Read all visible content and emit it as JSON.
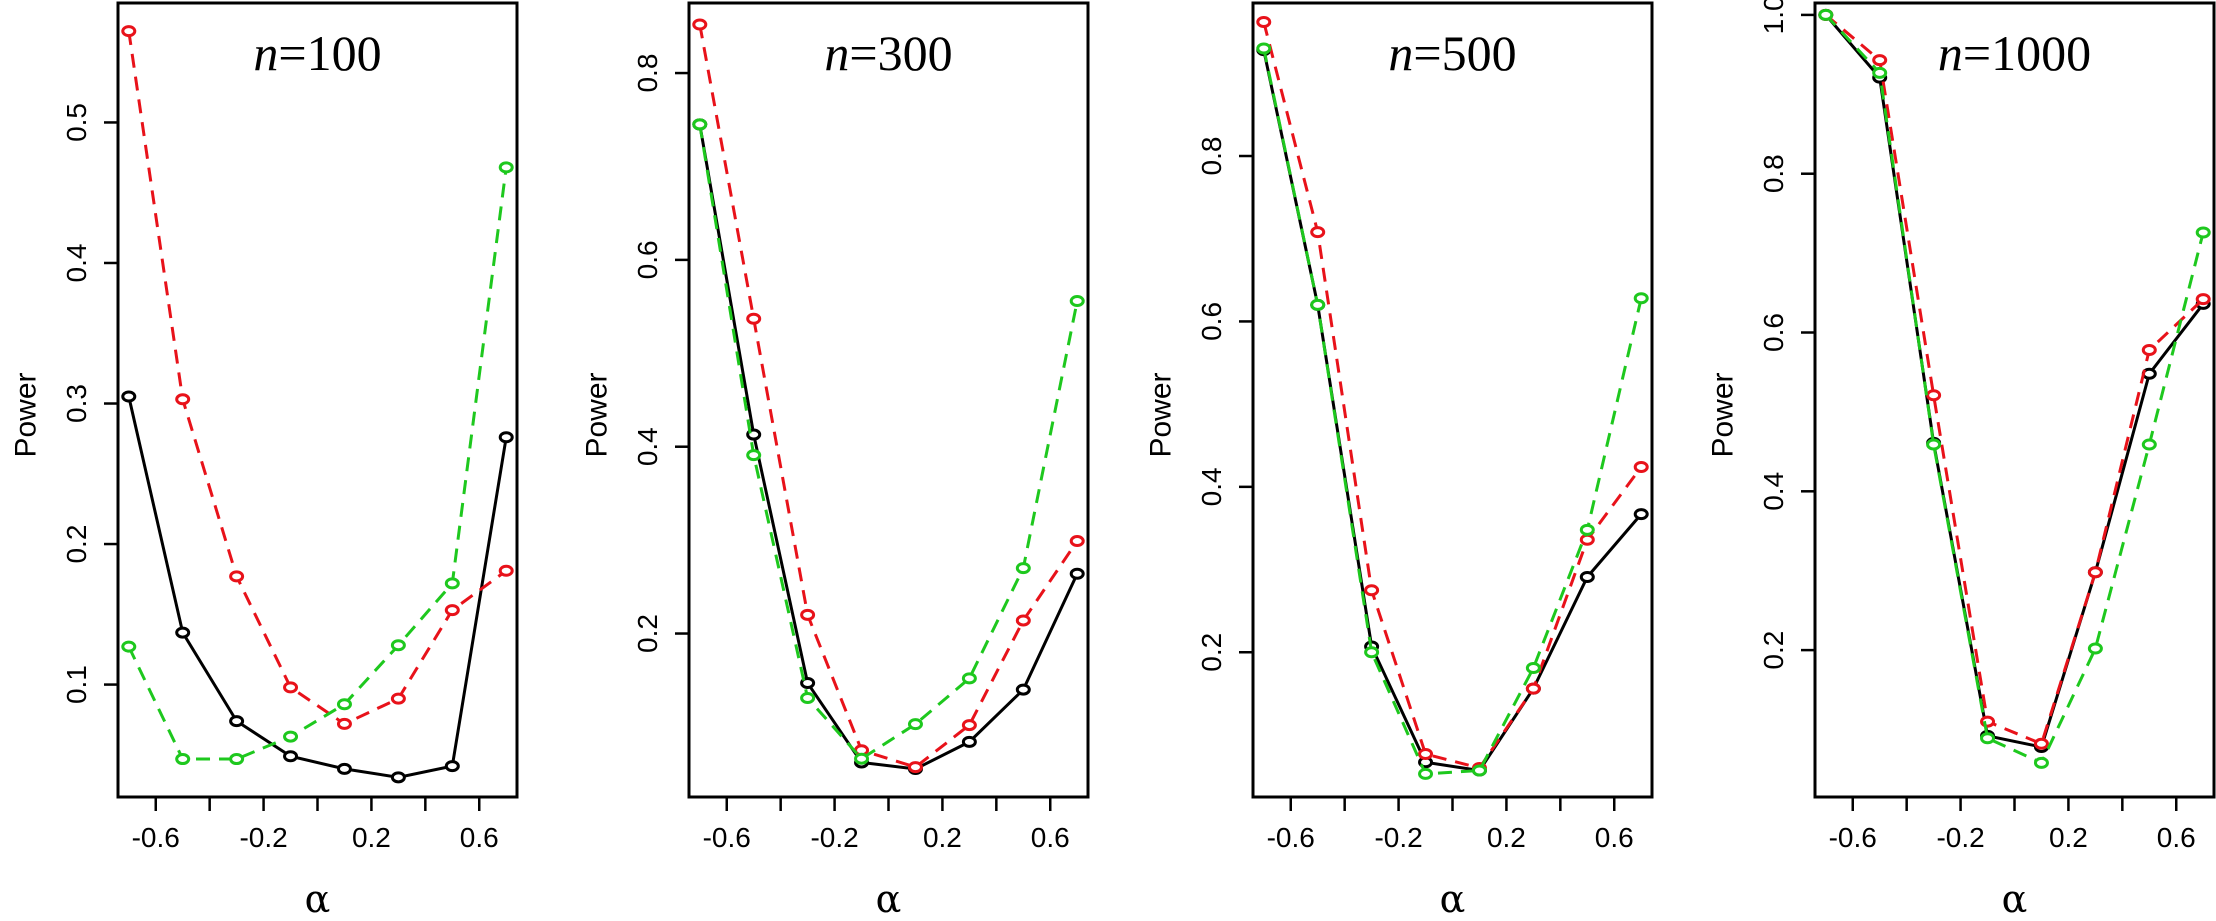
{
  "chart_data": [
    {
      "type": "line",
      "title": "n=100",
      "title_var": "n",
      "title_rest": "=100",
      "xlabel": "α",
      "ylabel": "Power",
      "xlim": [
        -0.74,
        0.74
      ],
      "ylim": [
        0.02,
        0.585
      ],
      "xticks": [
        -0.6,
        -0.4,
        -0.2,
        0.0,
        0.2,
        0.4,
        0.6
      ],
      "xtick_labels": [
        "-0.6",
        "",
        "-0.2",
        "",
        "0.2",
        "",
        "0.6"
      ],
      "yticks": [
        0.1,
        0.2,
        0.3,
        0.4,
        0.5
      ],
      "ytick_labels": [
        "0.1",
        "0.2",
        "0.3",
        "0.4",
        "0.5"
      ],
      "x": [
        -0.7,
        -0.5,
        -0.3,
        -0.1,
        0.1,
        0.3,
        0.5,
        0.7
      ],
      "series": [
        {
          "color": "#000000",
          "dash": "solid",
          "values": [
            0.305,
            0.137,
            0.074,
            0.049,
            0.04,
            0.034,
            0.042,
            0.276
          ]
        },
        {
          "color": "#e8121a",
          "dash": "dashed",
          "values": [
            0.565,
            0.303,
            0.177,
            0.098,
            0.072,
            0.09,
            0.153,
            0.181
          ]
        },
        {
          "color": "#1ec81e",
          "dash": "dashed",
          "values": [
            0.127,
            0.047,
            0.047,
            0.063,
            0.086,
            0.128,
            0.172,
            0.468
          ]
        }
      ]
    },
    {
      "type": "line",
      "title": "n=300",
      "title_var": "n",
      "title_rest": "=300",
      "xlabel": "α",
      "ylabel": "Power",
      "xlim": [
        -0.74,
        0.74
      ],
      "ylim": [
        0.025,
        0.875
      ],
      "xticks": [
        -0.6,
        -0.4,
        -0.2,
        0.0,
        0.2,
        0.4,
        0.6
      ],
      "xtick_labels": [
        "-0.6",
        "",
        "-0.2",
        "",
        "0.2",
        "",
        "0.6"
      ],
      "yticks": [
        0.2,
        0.4,
        0.6,
        0.8
      ],
      "ytick_labels": [
        "0.2",
        "0.4",
        "0.6",
        "0.8"
      ],
      "x": [
        -0.7,
        -0.5,
        -0.3,
        -0.1,
        0.1,
        0.3,
        0.5,
        0.7
      ],
      "series": [
        {
          "color": "#000000",
          "dash": "solid",
          "values": [
            0.745,
            0.413,
            0.147,
            0.062,
            0.055,
            0.084,
            0.14,
            0.264
          ]
        },
        {
          "color": "#e8121a",
          "dash": "dashed",
          "values": [
            0.852,
            0.537,
            0.22,
            0.075,
            0.057,
            0.102,
            0.214,
            0.299
          ]
        },
        {
          "color": "#1ec81e",
          "dash": "dashed",
          "values": [
            0.745,
            0.391,
            0.131,
            0.066,
            0.103,
            0.152,
            0.27,
            0.556
          ]
        }
      ]
    },
    {
      "type": "line",
      "title": "n=500",
      "title_var": "n",
      "title_rest": "=500",
      "xlabel": "α",
      "ylabel": "Power",
      "xlim": [
        -0.74,
        0.74
      ],
      "ylim": [
        0.025,
        0.985
      ],
      "xticks": [
        -0.6,
        -0.4,
        -0.2,
        0.0,
        0.2,
        0.4,
        0.6
      ],
      "xtick_labels": [
        "-0.6",
        "",
        "-0.2",
        "",
        "0.2",
        "",
        "0.6"
      ],
      "yticks": [
        0.2,
        0.4,
        0.6,
        0.8
      ],
      "ytick_labels": [
        "0.2",
        "0.4",
        "0.6",
        "0.8"
      ],
      "x": [
        -0.7,
        -0.5,
        -0.3,
        -0.1,
        0.1,
        0.3,
        0.5,
        0.7
      ],
      "series": [
        {
          "color": "#000000",
          "dash": "solid",
          "values": [
            0.928,
            0.62,
            0.207,
            0.067,
            0.057,
            0.156,
            0.291,
            0.367
          ]
        },
        {
          "color": "#e8121a",
          "dash": "dashed",
          "values": [
            0.962,
            0.708,
            0.275,
            0.077,
            0.06,
            0.156,
            0.336,
            0.424
          ]
        },
        {
          "color": "#1ec81e",
          "dash": "dashed",
          "values": [
            0.93,
            0.62,
            0.2,
            0.053,
            0.057,
            0.181,
            0.348,
            0.628
          ]
        }
      ]
    },
    {
      "type": "line",
      "title": "n=1000",
      "title_var": "n",
      "title_rest": "=1000",
      "xlabel": "α",
      "ylabel": "Power",
      "xlim": [
        -0.74,
        0.74
      ],
      "ylim": [
        0.015,
        1.015
      ],
      "xticks": [
        -0.6,
        -0.4,
        -0.2,
        0.0,
        0.2,
        0.4,
        0.6
      ],
      "xtick_labels": [
        "-0.6",
        "",
        "-0.2",
        "",
        "0.2",
        "",
        "0.6"
      ],
      "yticks": [
        0.2,
        0.4,
        0.6,
        0.8,
        1.0
      ],
      "ytick_labels": [
        "0.2",
        "0.4",
        "0.6",
        "0.8",
        "1.0"
      ],
      "x": [
        -0.7,
        -0.5,
        -0.3,
        -0.1,
        0.1,
        0.3,
        0.5,
        0.7
      ],
      "series": [
        {
          "color": "#000000",
          "dash": "solid",
          "values": [
            1.0,
            0.921,
            0.461,
            0.092,
            0.078,
            0.298,
            0.548,
            0.636
          ]
        },
        {
          "color": "#e8121a",
          "dash": "dashed",
          "values": [
            1.0,
            0.943,
            0.521,
            0.11,
            0.082,
            0.298,
            0.578,
            0.642
          ]
        },
        {
          "color": "#1ec81e",
          "dash": "dashed",
          "values": [
            1.0,
            0.927,
            0.459,
            0.089,
            0.058,
            0.202,
            0.459,
            0.726
          ]
        }
      ]
    }
  ]
}
